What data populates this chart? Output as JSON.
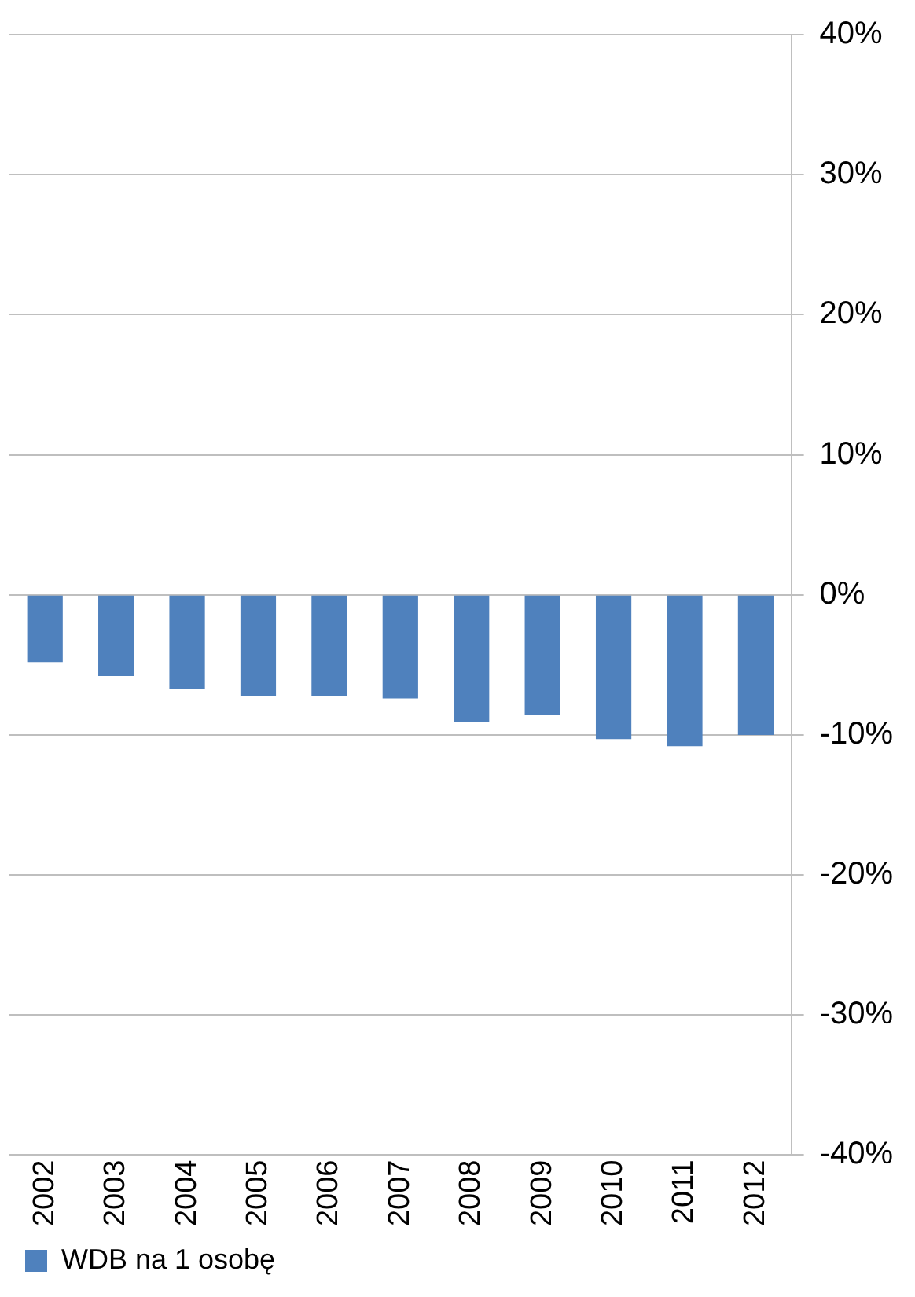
{
  "chart_data": {
    "type": "bar",
    "categories": [
      "2002",
      "2003",
      "2004",
      "2005",
      "2006",
      "2007",
      "2008",
      "2009",
      "2010",
      "2011",
      "2012"
    ],
    "series": [
      {
        "name": "WDB na 1 osobę",
        "color": "#4f81bd",
        "values": [
          -4.8,
          -5.8,
          -6.7,
          -7.2,
          -7.2,
          -7.4,
          -9.1,
          -8.6,
          -10.3,
          -10.8,
          -10.0
        ]
      }
    ],
    "ylim": [
      -40,
      40
    ],
    "yticks": [
      {
        "value": -40,
        "label": "-40%"
      },
      {
        "value": -30,
        "label": "-30%"
      },
      {
        "value": -20,
        "label": "-20%"
      },
      {
        "value": -10,
        "label": "-10%"
      },
      {
        "value": 0,
        "label": "0%"
      },
      {
        "value": 10,
        "label": "10%"
      },
      {
        "value": 20,
        "label": "20%"
      },
      {
        "value": 30,
        "label": "30%"
      },
      {
        "value": 40,
        "label": "40%"
      }
    ],
    "grid": "y",
    "legend": "bottom left"
  }
}
